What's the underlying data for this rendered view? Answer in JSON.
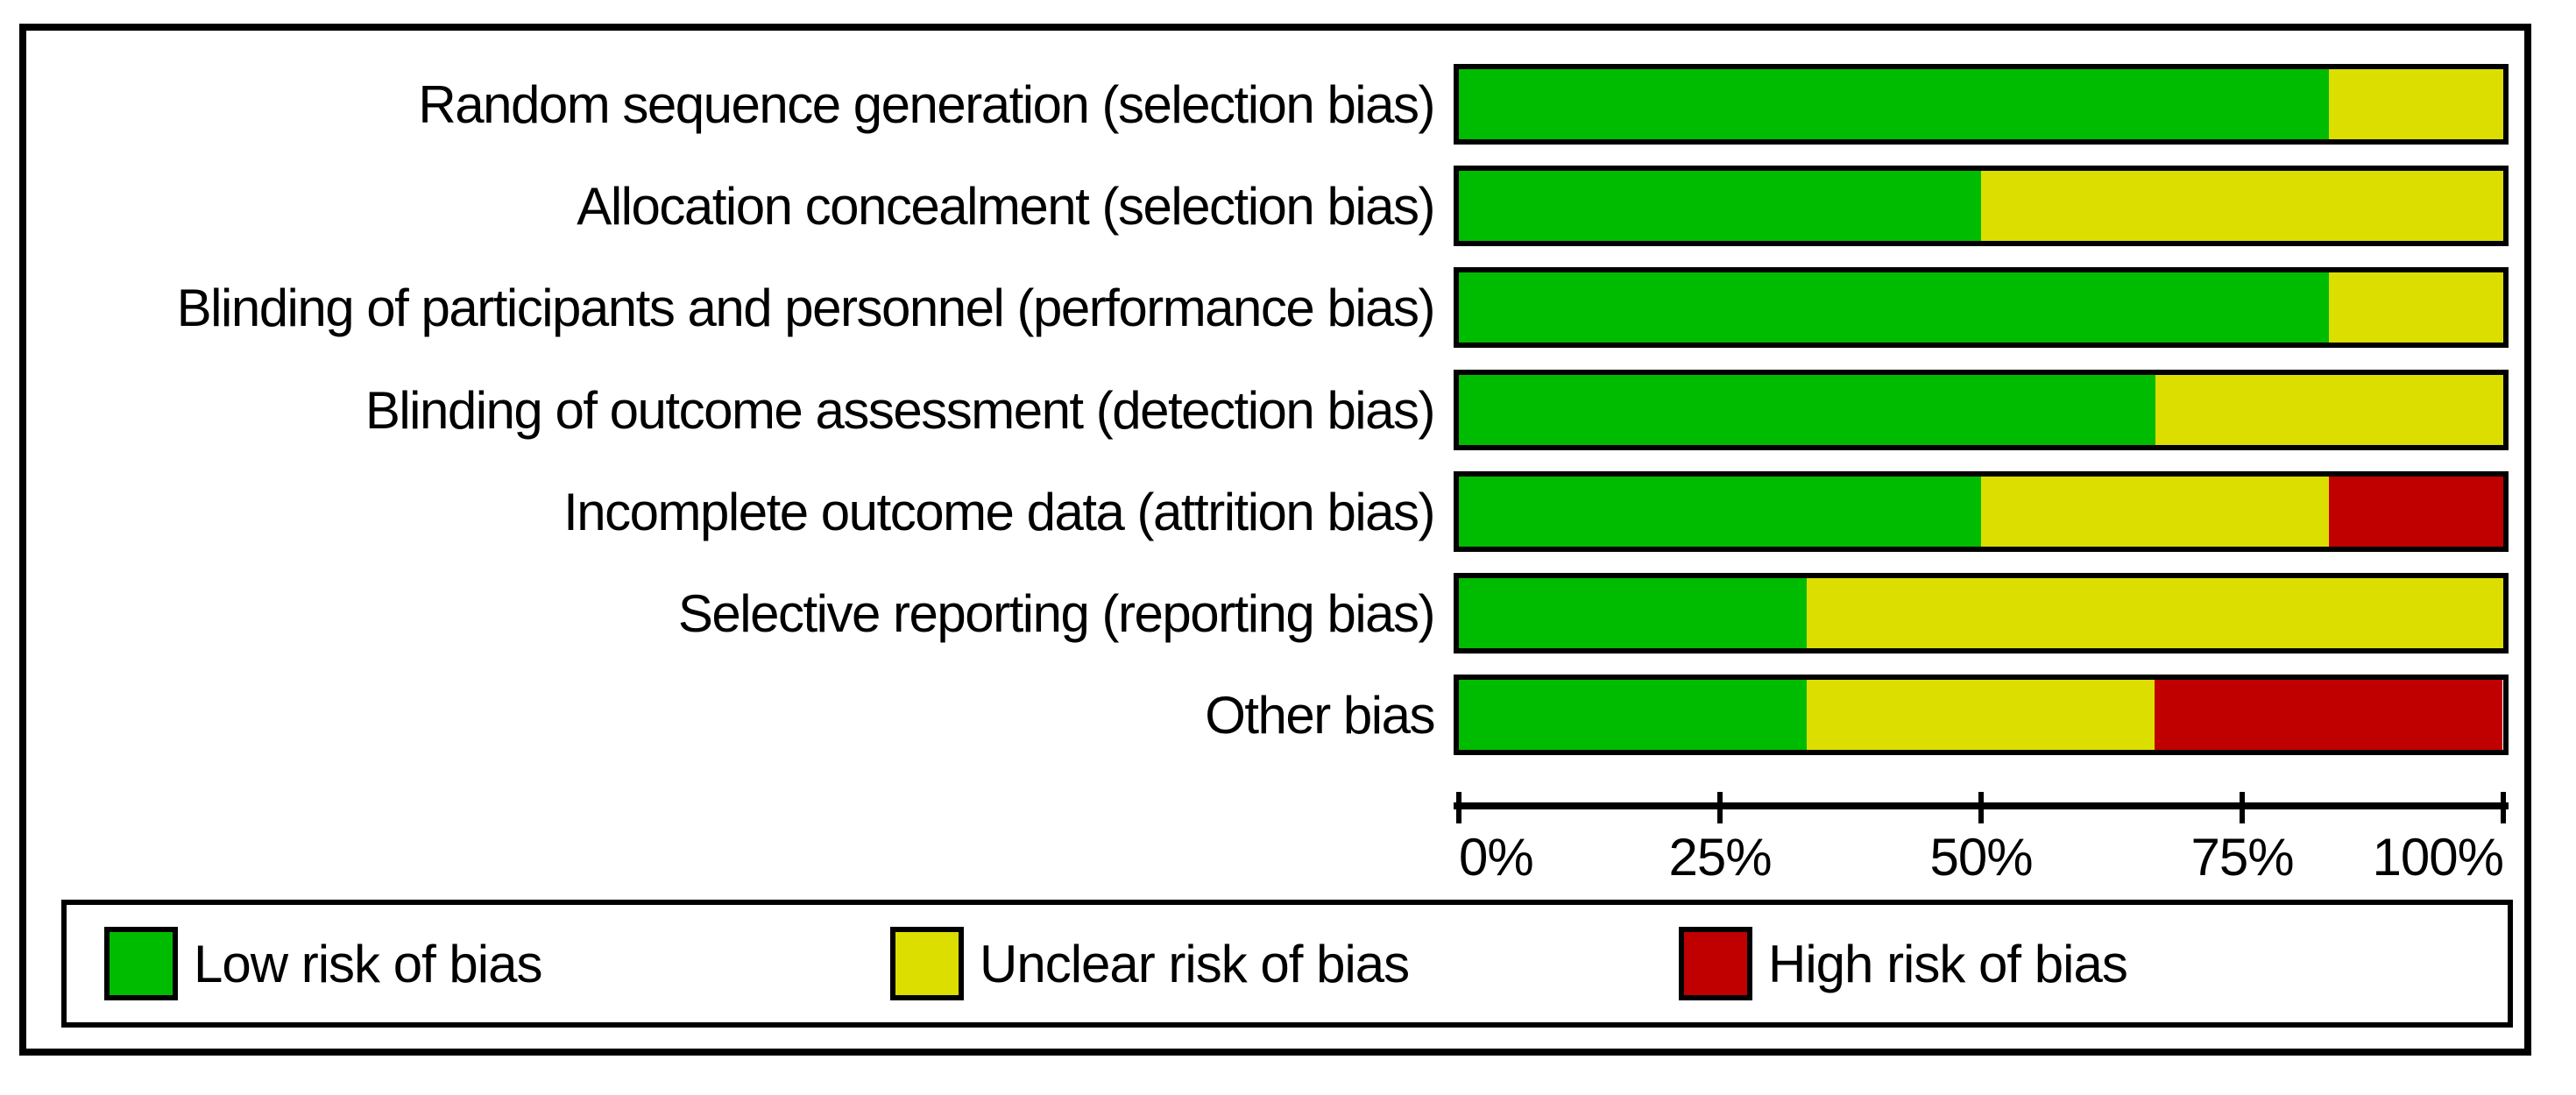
{
  "figure": {
    "background_color": "#ffffff",
    "frame_color": "#000000"
  },
  "chart_data": {
    "type": "bar",
    "orientation": "horizontal-stacked",
    "title": "",
    "xlabel": "",
    "ylabel": "",
    "xlim": [
      0,
      100
    ],
    "grid": false,
    "legend_position": "bottom",
    "x_ticks": [
      "0%",
      "25%",
      "50%",
      "75%",
      "100%"
    ],
    "categories": [
      "Random sequence generation (selection bias)",
      "Allocation concealment (selection bias)",
      "Blinding of participants and personnel (performance bias)",
      "Blinding of outcome assessment (detection bias)",
      "Incomplete outcome data (attrition bias)",
      "Selective reporting (reporting bias)",
      "Other bias"
    ],
    "series": [
      {
        "name": "Low risk of bias",
        "color": "#00BC00",
        "values": [
          83.3,
          50.0,
          83.3,
          66.7,
          50.0,
          33.3,
          33.3
        ]
      },
      {
        "name": "Unclear risk of bias",
        "color": "#DCDE00",
        "values": [
          16.7,
          50.0,
          16.7,
          33.3,
          33.3,
          66.7,
          33.3
        ]
      },
      {
        "name": "High risk of bias",
        "color": "#C00000",
        "values": [
          0,
          0,
          0,
          0,
          16.7,
          0,
          33.3
        ]
      }
    ]
  },
  "legend": {
    "items": [
      {
        "label": "Low risk of bias",
        "color": "#00BC00"
      },
      {
        "label": "Unclear risk of bias",
        "color": "#DCDE00"
      },
      {
        "label": "High risk of bias",
        "color": "#C00000"
      }
    ]
  }
}
